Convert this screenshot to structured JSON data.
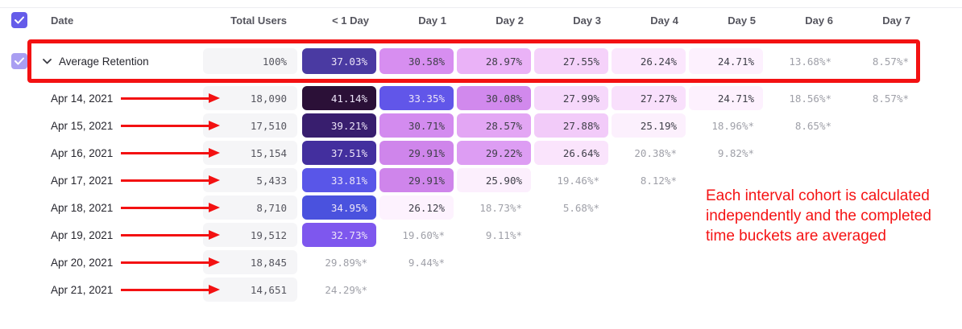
{
  "header": {
    "columns": [
      "Date",
      "Total Users",
      "< 1 Day",
      "Day 1",
      "Day 2",
      "Day 3",
      "Day 4",
      "Day 5",
      "Day 6",
      "Day 7"
    ]
  },
  "average_row": {
    "label": "Average Retention",
    "total": "100%",
    "cells": [
      {
        "v": "37.03%",
        "bg": "#4a3aa2",
        "fg": "light"
      },
      {
        "v": "30.58%",
        "bg": "#d78ef0",
        "fg": "dark"
      },
      {
        "v": "28.97%",
        "bg": "#eab2f7",
        "fg": "dark"
      },
      {
        "v": "27.55%",
        "bg": "#f5d2fa",
        "fg": "dark"
      },
      {
        "v": "26.24%",
        "bg": "#fbe7fd",
        "fg": "dark"
      },
      {
        "v": "24.71%",
        "bg": "#fdf1fe",
        "fg": "dark"
      },
      {
        "v": "13.68%*",
        "bg": null,
        "fg": "muted"
      },
      {
        "v": "8.57%*",
        "bg": null,
        "fg": "muted"
      }
    ]
  },
  "rows": [
    {
      "date": "Apr 14, 2021",
      "total": "18,090",
      "cells": [
        {
          "v": "41.14%",
          "bg": "#2b1037",
          "fg": "light"
        },
        {
          "v": "33.35%",
          "bg": "#6156e9",
          "fg": "light"
        },
        {
          "v": "30.08%",
          "bg": "#d189ed",
          "fg": "dark"
        },
        {
          "v": "27.99%",
          "bg": "#f6d8fb",
          "fg": "dark"
        },
        {
          "v": "27.27%",
          "bg": "#f9e0fc",
          "fg": "dark"
        },
        {
          "v": "24.71%",
          "bg": "#fdf1fe",
          "fg": "dark"
        },
        {
          "v": "18.56%*",
          "bg": null,
          "fg": "muted"
        },
        {
          "v": "8.57%*",
          "bg": null,
          "fg": "muted"
        }
      ]
    },
    {
      "date": "Apr 15, 2021",
      "total": "17,510",
      "cells": [
        {
          "v": "39.21%",
          "bg": "#381e6e",
          "fg": "light"
        },
        {
          "v": "30.71%",
          "bg": "#d38bef",
          "fg": "dark"
        },
        {
          "v": "28.57%",
          "bg": "#e3a6f4",
          "fg": "dark"
        },
        {
          "v": "27.88%",
          "bg": "#f2cbf9",
          "fg": "dark"
        },
        {
          "v": "25.19%",
          "bg": "#fcf0fd",
          "fg": "dark"
        },
        {
          "v": "18.96%*",
          "bg": null,
          "fg": "muted"
        },
        {
          "v": "8.65%*",
          "bg": null,
          "fg": "muted"
        }
      ]
    },
    {
      "date": "Apr 16, 2021",
      "total": "15,154",
      "cells": [
        {
          "v": "37.51%",
          "bg": "#432f9e",
          "fg": "light"
        },
        {
          "v": "29.91%",
          "bg": "#cf85eb",
          "fg": "dark"
        },
        {
          "v": "29.22%",
          "bg": "#dd9df3",
          "fg": "dark"
        },
        {
          "v": "26.64%",
          "bg": "#fae4fc",
          "fg": "dark"
        },
        {
          "v": "20.38%*",
          "bg": null,
          "fg": "muted"
        },
        {
          "v": "9.82%*",
          "bg": null,
          "fg": "muted"
        }
      ]
    },
    {
      "date": "Apr 17, 2021",
      "total": "5,433",
      "cells": [
        {
          "v": "33.81%",
          "bg": "#5956e8",
          "fg": "light"
        },
        {
          "v": "29.91%",
          "bg": "#cf85eb",
          "fg": "dark"
        },
        {
          "v": "25.90%",
          "bg": "#fceffd",
          "fg": "dark"
        },
        {
          "v": "19.46%*",
          "bg": null,
          "fg": "muted"
        },
        {
          "v": "8.12%*",
          "bg": null,
          "fg": "muted"
        }
      ]
    },
    {
      "date": "Apr 18, 2021",
      "total": "8,710",
      "cells": [
        {
          "v": "34.95%",
          "bg": "#4a52de",
          "fg": "light"
        },
        {
          "v": "26.12%",
          "bg": "#fdf2fe",
          "fg": "dark"
        },
        {
          "v": "18.73%*",
          "bg": null,
          "fg": "muted"
        },
        {
          "v": "5.68%*",
          "bg": null,
          "fg": "muted"
        }
      ]
    },
    {
      "date": "Apr 19, 2021",
      "total": "19,512",
      "cells": [
        {
          "v": "32.73%",
          "bg": "#7e57ee",
          "fg": "light"
        },
        {
          "v": "19.60%*",
          "bg": null,
          "fg": "muted"
        },
        {
          "v": "9.11%*",
          "bg": null,
          "fg": "muted"
        }
      ]
    },
    {
      "date": "Apr 20, 2021",
      "total": "18,845",
      "cells": [
        {
          "v": "29.89%*",
          "bg": null,
          "fg": "muted"
        },
        {
          "v": "9.44%*",
          "bg": null,
          "fg": "muted"
        }
      ]
    },
    {
      "date": "Apr 21, 2021",
      "total": "14,651",
      "cells": [
        {
          "v": "24.29%*",
          "bg": null,
          "fg": "muted"
        }
      ]
    }
  ],
  "annotation": {
    "text": "Each interval cohort is calculated independently and the completed time buckets are averaged"
  },
  "colors": {
    "accent_purple": "#655ce9",
    "soft_purple_checkbox": "#a99ef2",
    "annotation_red": "#f31112",
    "muted_text": "#9fa0a8",
    "total_cell_bg": "#f5f5f7"
  }
}
